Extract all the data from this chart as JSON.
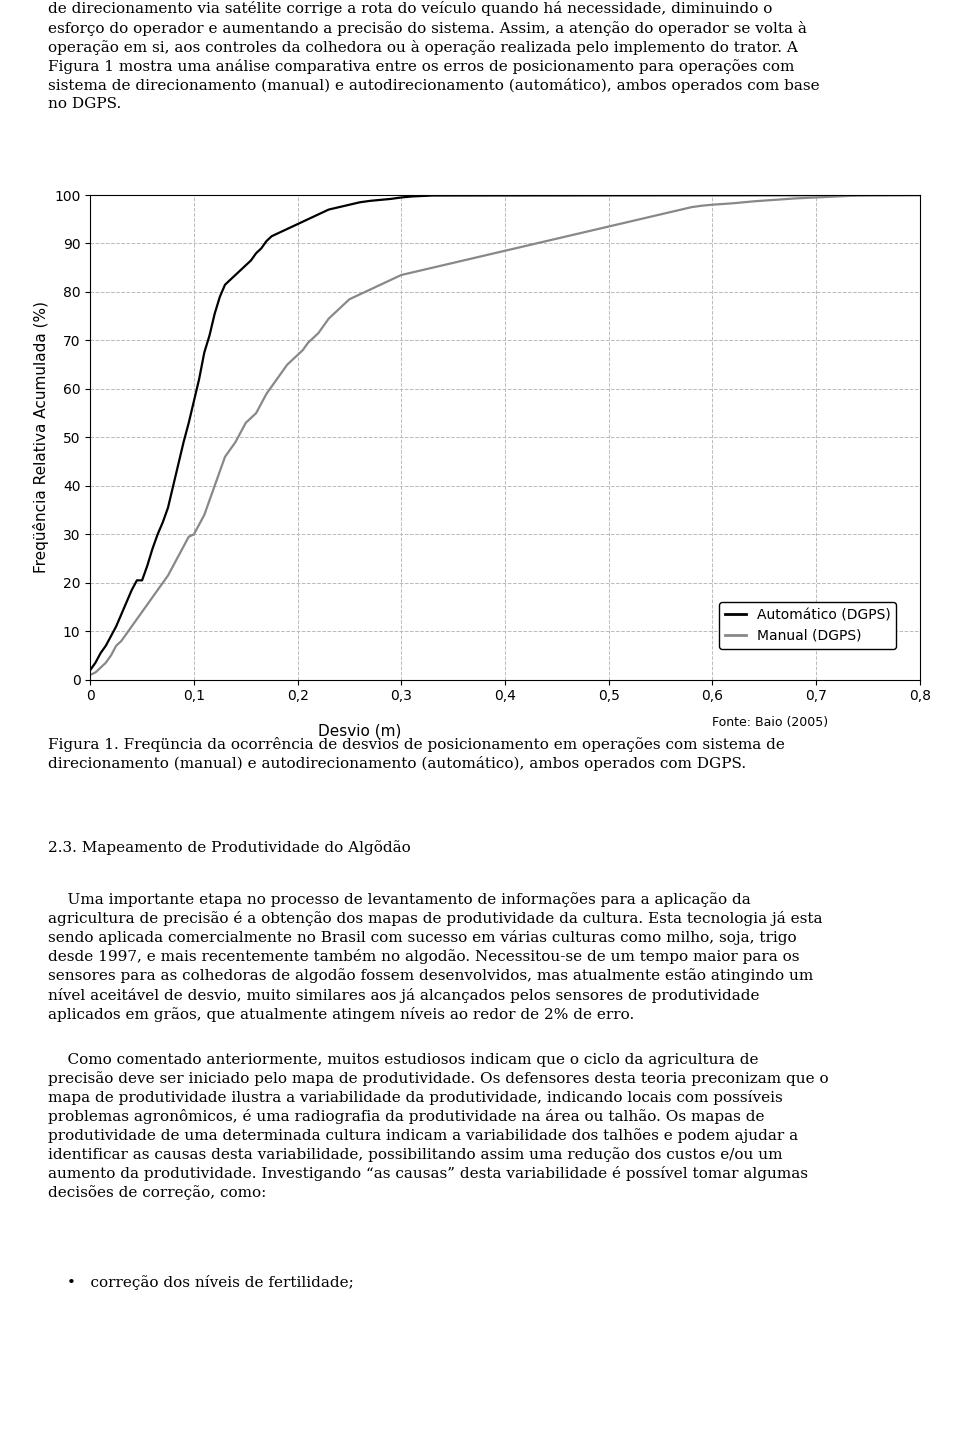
{
  "title": "",
  "xlabel": "Desvio (m)",
  "ylabel": "Freqüência Relativa Acumulada (%)",
  "source_text": "Fonte: Baio (2005)",
  "xlim": [
    0,
    0.8
  ],
  "ylim": [
    0,
    100
  ],
  "xticks": [
    0,
    0.1,
    0.2,
    0.3,
    0.4,
    0.5,
    0.6,
    0.7,
    0.8
  ],
  "yticks": [
    0,
    10,
    20,
    30,
    40,
    50,
    60,
    70,
    80,
    90,
    100
  ],
  "xtick_labels": [
    "0",
    "0,1",
    "0,2",
    "0,3",
    "0,4",
    "0,5",
    "0,6",
    "0,7",
    "0,8"
  ],
  "ytick_labels": [
    "0",
    "10",
    "20",
    "30",
    "40",
    "50",
    "60",
    "70",
    "80",
    "90",
    "100"
  ],
  "legend_labels": [
    "Automático (DGPS)",
    "Manual (DGPS)"
  ],
  "auto_color": "#000000",
  "manual_color": "#888888",
  "line_width": 1.6,
  "background_color": "#ffffff",
  "grid_color": "#bbbbbb",
  "auto_x": [
    0.0,
    0.005,
    0.01,
    0.015,
    0.02,
    0.025,
    0.03,
    0.035,
    0.04,
    0.045,
    0.05,
    0.055,
    0.06,
    0.065,
    0.07,
    0.075,
    0.08,
    0.085,
    0.09,
    0.095,
    0.1,
    0.105,
    0.11,
    0.115,
    0.12,
    0.125,
    0.13,
    0.135,
    0.14,
    0.145,
    0.15,
    0.155,
    0.16,
    0.165,
    0.17,
    0.175,
    0.18,
    0.185,
    0.19,
    0.195,
    0.2,
    0.205,
    0.21,
    0.215,
    0.22,
    0.225,
    0.23,
    0.24,
    0.25,
    0.26,
    0.27,
    0.28,
    0.29,
    0.3,
    0.31,
    0.32,
    0.33,
    0.8
  ],
  "auto_y": [
    2.0,
    3.5,
    5.5,
    7.0,
    9.0,
    11.0,
    13.5,
    16.0,
    18.5,
    20.5,
    20.5,
    23.5,
    27.0,
    30.0,
    32.5,
    35.5,
    40.0,
    44.5,
    49.0,
    53.0,
    57.5,
    62.0,
    67.5,
    71.0,
    75.5,
    79.0,
    81.5,
    82.5,
    83.5,
    84.5,
    85.5,
    86.5,
    88.0,
    89.0,
    90.5,
    91.5,
    92.0,
    92.5,
    93.0,
    93.5,
    94.0,
    94.5,
    95.0,
    95.5,
    96.0,
    96.5,
    97.0,
    97.5,
    98.0,
    98.5,
    98.8,
    99.0,
    99.2,
    99.5,
    99.7,
    99.8,
    99.9,
    100.0
  ],
  "manual_x": [
    0.0,
    0.005,
    0.01,
    0.015,
    0.02,
    0.025,
    0.03,
    0.035,
    0.04,
    0.045,
    0.05,
    0.055,
    0.06,
    0.065,
    0.07,
    0.075,
    0.08,
    0.085,
    0.09,
    0.095,
    0.1,
    0.105,
    0.11,
    0.115,
    0.12,
    0.125,
    0.13,
    0.135,
    0.14,
    0.145,
    0.15,
    0.155,
    0.16,
    0.165,
    0.17,
    0.175,
    0.18,
    0.185,
    0.19,
    0.195,
    0.2,
    0.205,
    0.21,
    0.215,
    0.22,
    0.225,
    0.23,
    0.235,
    0.24,
    0.245,
    0.25,
    0.255,
    0.26,
    0.265,
    0.27,
    0.275,
    0.28,
    0.285,
    0.29,
    0.295,
    0.3,
    0.31,
    0.32,
    0.33,
    0.34,
    0.35,
    0.36,
    0.37,
    0.38,
    0.39,
    0.4,
    0.41,
    0.42,
    0.43,
    0.44,
    0.45,
    0.46,
    0.47,
    0.48,
    0.49,
    0.5,
    0.51,
    0.52,
    0.53,
    0.54,
    0.55,
    0.56,
    0.57,
    0.58,
    0.59,
    0.6,
    0.62,
    0.64,
    0.66,
    0.68,
    0.7,
    0.72,
    0.74,
    0.76,
    0.8
  ],
  "manual_y": [
    1.0,
    1.5,
    2.5,
    3.5,
    5.0,
    7.0,
    8.0,
    9.5,
    11.0,
    12.5,
    14.0,
    15.5,
    17.0,
    18.5,
    20.0,
    21.5,
    23.5,
    25.5,
    27.5,
    29.5,
    30.0,
    32.0,
    34.0,
    37.0,
    40.0,
    43.0,
    46.0,
    47.5,
    49.0,
    51.0,
    53.0,
    54.0,
    55.0,
    57.0,
    59.0,
    60.5,
    62.0,
    63.5,
    65.0,
    66.0,
    67.0,
    68.0,
    69.5,
    70.5,
    71.5,
    73.0,
    74.5,
    75.5,
    76.5,
    77.5,
    78.5,
    79.0,
    79.5,
    80.0,
    80.5,
    81.0,
    81.5,
    82.0,
    82.5,
    83.0,
    83.5,
    84.0,
    84.5,
    85.0,
    85.5,
    86.0,
    86.5,
    87.0,
    87.5,
    88.0,
    88.5,
    89.0,
    89.5,
    90.0,
    90.5,
    91.0,
    91.5,
    92.0,
    92.5,
    93.0,
    93.5,
    94.0,
    94.5,
    95.0,
    95.5,
    96.0,
    96.5,
    97.0,
    97.5,
    97.8,
    98.0,
    98.3,
    98.7,
    99.0,
    99.3,
    99.5,
    99.7,
    99.9,
    99.95,
    100.0
  ],
  "font_size": 11,
  "tick_font_size": 10,
  "label_font_size": 11,
  "legend_font_size": 10,
  "top_text": "de direcionamento via satélite corrige a rota do veículo quando há necessidade, diminuindo o\nesforço do operador e aumentando a precisão do sistema. Assim, a atenção do operador se volta à\noperação em si, aos controles da colhedora ou à operação realizada pelo implemento do trator. A\nFigura 1 mostra uma análise comparativa entre os erros de posicionamento para operações com\nsistema de direcionamento (manual) e autodirecionamento (automático), ambos operados com base\nno DGPS.",
  "caption_line1": "Figura 1. Freqüncia da ocorrência de desvios de posicionamento em operações com sistema de",
  "caption_line2": "direcionamento (manual) e autodirecionamento (automático), ambos operados com DGPS.",
  "section_heading": "2.3. Mapeamento de Produtividade do Algõdão",
  "body_para1": "    Uma importante etapa no processo de levantamento de informações para a aplicação da\nagricultura de precisão é a obtenção dos mapas de produtividade da cultura. Esta tecnologia já esta\nsendo aplicada comercialmente no Brasil com sucesso em várias culturas como milho, soja, trigo\ndesde 1997, e mais recentemente também no algodão. Necessitou-se de um tempo maior para os\nsensores para as colhedoras de algodão fossem desenvolvidos, mas atualmente estão atingindo um\nnível aceitável de desvio, muito similares aos já alcançados pelos sensores de produtividade\naplicados em grãos, que atualmente atingem níveis ao redor de 2% de erro.",
  "body_para2": "    Como comentado anteriormente, muitos estudiosos indicam que o ciclo da agricultura de\nprecisão deve ser iniciado pelo mapa de produtividade. Os defensores desta teoria preconizam que o\nmapa de produtividade ilustra a variabilidade da produtividade, indicando locais com possíveis\nproblemas agronômicos, é uma radiografia da produtividade na área ou talhão. Os mapas de\nprodutividade de uma determinada cultura indicam a variabilidade dos talhões e podem ajudar a\nidentificar as causas desta variabilidade, possibilitando assim uma redução dos custos e/ou um\naumento da produtividade. Investigando “as causas” desta variabilidade é possível tomar algumas\ndecisões de correção, como:",
  "bullet_text": "•   correção dos níveis de fertilidade;"
}
